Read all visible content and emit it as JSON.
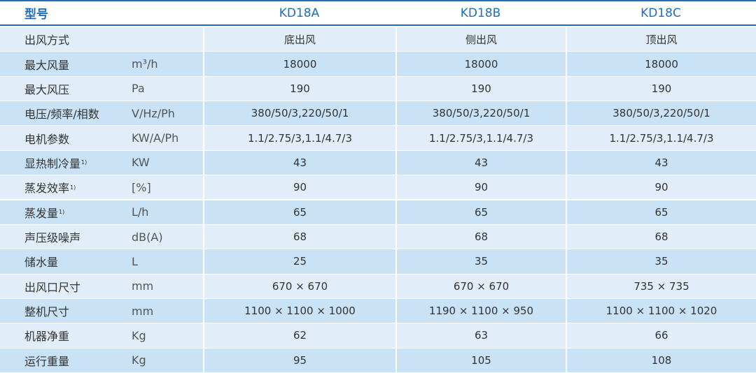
{
  "table": {
    "header": [
      "型号",
      "KD18A",
      "KD18B",
      "KD18C"
    ],
    "rows": [
      {
        "label": "出风方式",
        "values": [
          "底出风",
          "侧出风",
          "顶出风"
        ]
      },
      {
        "label": "最大风量",
        "unit": "m³/h",
        "values": [
          "18000",
          "18000",
          "18000"
        ]
      },
      {
        "label": "最大风压",
        "unit": "Pa",
        "values": [
          "190",
          "190",
          "190"
        ]
      },
      {
        "label": "电压/频率/相数",
        "unit": "V/Hz/Ph",
        "values": [
          "380/50/3,220/50/1",
          "380/50/3,220/50/1",
          "380/50/3,220/50/1"
        ]
      },
      {
        "label": "电机参数",
        "unit": "KW/A/Ph",
        "values": [
          "1.1/2.75/3,1.1/4.7/3",
          "1.1/2.75/3,1.1/4.7/3",
          "1.1/2.75/3,1.1/4.7/3"
        ]
      },
      {
        "label": "显热制冷量",
        "note": "1)",
        "unit": "KW",
        "values": [
          "43",
          "43",
          "43"
        ]
      },
      {
        "label": "蒸发效率",
        "note": "1)",
        "unit": "[%]",
        "values": [
          "90",
          "90",
          "90"
        ]
      },
      {
        "label": "蒸发量",
        "note": "1)",
        "unit": "L/h",
        "values": [
          "65",
          "65",
          "65"
        ]
      },
      {
        "label": "声压级噪声",
        "unit": "dB(A)",
        "values": [
          "68",
          "68",
          "68"
        ]
      },
      {
        "label": "储水量",
        "unit": "L",
        "values": [
          "25",
          "35",
          "35"
        ]
      },
      {
        "label": "出风口尺寸",
        "unit": "mm",
        "values": [
          "670 × 670",
          "670 × 670",
          "735 × 735"
        ]
      },
      {
        "label": "整机尺寸",
        "unit": "mm",
        "values": [
          "1100 × 1100 × 1000",
          "1190 × 1100 × 950",
          "1100 × 1100 × 1020"
        ]
      },
      {
        "label": "机器净重",
        "unit": "Kg",
        "values": [
          "62",
          "63",
          "66"
        ]
      },
      {
        "label": "运行重量",
        "unit": "Kg",
        "values": [
          "95",
          "105",
          "108"
        ]
      }
    ]
  }
}
